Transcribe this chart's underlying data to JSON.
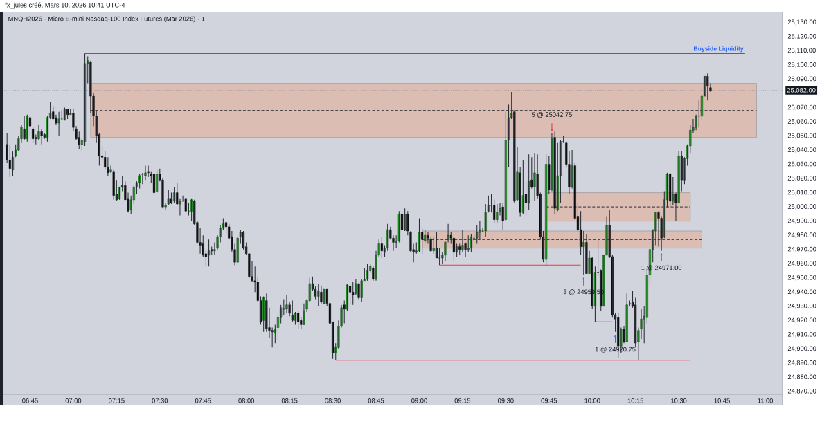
{
  "chart_data": {
    "type": "candlestick",
    "title": "MNQH2026 · Micro E-mini Nasdaq-100 Index Futures (Mar 2026) · 1",
    "subtitle": "fx_jules créé, Mars 10, 2026 10:41 UTC-4",
    "xlim": [
      "2026-03-10T06:36",
      "2026-03-10T11:06"
    ],
    "xticks": [
      {
        "value": "2026-03-10T06:45",
        "label": "06:45"
      },
      {
        "value": "2026-03-10T07:00",
        "label": "07:00"
      },
      {
        "value": "2026-03-10T07:15",
        "label": "07:15"
      },
      {
        "value": "2026-03-10T07:30",
        "label": "07:30"
      },
      {
        "value": "2026-03-10T07:45",
        "label": "07:45"
      },
      {
        "value": "2026-03-10T08:00",
        "label": "08:00"
      },
      {
        "value": "2026-03-10T08:15",
        "label": "08:15"
      },
      {
        "value": "2026-03-10T08:30",
        "label": "08:30"
      },
      {
        "value": "2026-03-10T08:45",
        "label": "08:45"
      },
      {
        "value": "2026-03-10T09:00",
        "label": "09:00"
      },
      {
        "value": "2026-03-10T09:15",
        "label": "09:15"
      },
      {
        "value": "2026-03-10T09:30",
        "label": "09:30"
      },
      {
        "value": "2026-03-10T09:45",
        "label": "09:45"
      },
      {
        "value": "2026-03-10T10:00",
        "label": "10:00"
      },
      {
        "value": "2026-03-10T10:15",
        "label": "10:15"
      },
      {
        "value": "2026-03-10T10:30",
        "label": "10:30"
      },
      {
        "value": "2026-03-10T10:45",
        "label": "10:45"
      },
      {
        "value": "2026-03-10T11:00",
        "label": "11:00"
      }
    ],
    "ylim": [
      24868,
      25137
    ],
    "yticks": [
      {
        "value": 24870,
        "label": "24,870.00"
      },
      {
        "value": 24880,
        "label": "24,880.00"
      },
      {
        "value": 24890,
        "label": "24,890.00"
      },
      {
        "value": 24900,
        "label": "24,900.00"
      },
      {
        "value": 24910,
        "label": "24,910.00"
      },
      {
        "value": 24920,
        "label": "24,920.00"
      },
      {
        "value": 24930,
        "label": "24,930.00"
      },
      {
        "value": 24940,
        "label": "24,940.00"
      },
      {
        "value": 24950,
        "label": "24,950.00"
      },
      {
        "value": 24960,
        "label": "24,960.00"
      },
      {
        "value": 24970,
        "label": "24,970.00"
      },
      {
        "value": 24980,
        "label": "24,980.00"
      },
      {
        "value": 24990,
        "label": "24,990.00"
      },
      {
        "value": 25000,
        "label": "25,000.00"
      },
      {
        "value": 25010,
        "label": "25,010.00"
      },
      {
        "value": 25020,
        "label": "25,020.00"
      },
      {
        "value": 25030,
        "label": "25,030.00"
      },
      {
        "value": 25040,
        "label": "25,040.00"
      },
      {
        "value": 25050,
        "label": "25,050.00"
      },
      {
        "value": 25060,
        "label": "25,060.00"
      },
      {
        "value": 25070,
        "label": "25,070.00"
      },
      {
        "value": 25090,
        "label": "25,090.00"
      },
      {
        "value": 25100,
        "label": "25,100.00"
      },
      {
        "value": 25110,
        "label": "25,110.00"
      },
      {
        "value": 25120,
        "label": "25,120.00"
      },
      {
        "value": 25130,
        "label": "25,130.00"
      }
    ],
    "x": [
      "2026-03-10T06:37",
      "2026-03-10T06:38",
      "2026-03-10T06:39",
      "2026-03-10T06:40",
      "2026-03-10T06:41",
      "2026-03-10T06:42",
      "2026-03-10T06:43",
      "2026-03-10T06:44",
      "2026-03-10T06:45",
      "2026-03-10T06:46",
      "2026-03-10T06:47",
      "2026-03-10T06:48",
      "2026-03-10T06:49",
      "2026-03-10T06:50",
      "2026-03-10T06:51",
      "2026-03-10T06:52",
      "2026-03-10T06:53",
      "2026-03-10T06:54",
      "2026-03-10T06:55",
      "2026-03-10T06:56",
      "2026-03-10T06:57",
      "2026-03-10T06:58",
      "2026-03-10T06:59",
      "2026-03-10T07:00",
      "2026-03-10T07:01",
      "2026-03-10T07:02",
      "2026-03-10T07:03",
      "2026-03-10T07:04",
      "2026-03-10T07:05",
      "2026-03-10T07:06",
      "2026-03-10T07:07",
      "2026-03-10T07:08",
      "2026-03-10T07:09",
      "2026-03-10T07:10",
      "2026-03-10T07:11",
      "2026-03-10T07:12",
      "2026-03-10T07:13",
      "2026-03-10T07:14",
      "2026-03-10T07:15",
      "2026-03-10T07:16",
      "2026-03-10T07:17",
      "2026-03-10T07:18",
      "2026-03-10T07:19",
      "2026-03-10T07:20",
      "2026-03-10T07:21",
      "2026-03-10T07:22",
      "2026-03-10T07:23",
      "2026-03-10T07:24",
      "2026-03-10T07:25",
      "2026-03-10T07:26",
      "2026-03-10T07:27",
      "2026-03-10T07:28",
      "2026-03-10T07:29",
      "2026-03-10T07:30",
      "2026-03-10T07:31",
      "2026-03-10T07:32",
      "2026-03-10T07:33",
      "2026-03-10T07:34",
      "2026-03-10T07:35",
      "2026-03-10T07:36",
      "2026-03-10T07:37",
      "2026-03-10T07:38",
      "2026-03-10T07:39",
      "2026-03-10T07:40",
      "2026-03-10T07:41",
      "2026-03-10T07:42",
      "2026-03-10T07:43",
      "2026-03-10T07:44",
      "2026-03-10T07:45",
      "2026-03-10T07:46",
      "2026-03-10T07:47",
      "2026-03-10T07:48",
      "2026-03-10T07:49",
      "2026-03-10T07:50",
      "2026-03-10T07:51",
      "2026-03-10T07:52",
      "2026-03-10T07:53",
      "2026-03-10T07:54",
      "2026-03-10T07:55",
      "2026-03-10T07:56",
      "2026-03-10T07:57",
      "2026-03-10T07:58",
      "2026-03-10T07:59",
      "2026-03-10T08:00",
      "2026-03-10T08:01",
      "2026-03-10T08:02",
      "2026-03-10T08:03",
      "2026-03-10T08:04",
      "2026-03-10T08:05",
      "2026-03-10T08:06",
      "2026-03-10T08:07",
      "2026-03-10T08:08",
      "2026-03-10T08:09",
      "2026-03-10T08:10",
      "2026-03-10T08:11",
      "2026-03-10T08:12",
      "2026-03-10T08:13",
      "2026-03-10T08:14",
      "2026-03-10T08:15",
      "2026-03-10T08:16",
      "2026-03-10T08:17",
      "2026-03-10T08:18",
      "2026-03-10T08:19",
      "2026-03-10T08:20",
      "2026-03-10T08:21",
      "2026-03-10T08:22",
      "2026-03-10T08:23",
      "2026-03-10T08:24",
      "2026-03-10T08:25",
      "2026-03-10T08:26",
      "2026-03-10T08:27",
      "2026-03-10T08:28",
      "2026-03-10T08:29",
      "2026-03-10T08:30",
      "2026-03-10T08:31",
      "2026-03-10T08:32",
      "2026-03-10T08:33",
      "2026-03-10T08:34",
      "2026-03-10T08:35",
      "2026-03-10T08:36",
      "2026-03-10T08:37",
      "2026-03-10T08:38",
      "2026-03-10T08:39",
      "2026-03-10T08:40",
      "2026-03-10T08:41",
      "2026-03-10T08:42",
      "2026-03-10T08:43",
      "2026-03-10T08:44",
      "2026-03-10T08:45",
      "2026-03-10T08:46",
      "2026-03-10T08:47",
      "2026-03-10T08:48",
      "2026-03-10T08:49",
      "2026-03-10T08:50",
      "2026-03-10T08:51",
      "2026-03-10T08:52",
      "2026-03-10T08:53",
      "2026-03-10T08:54",
      "2026-03-10T08:55",
      "2026-03-10T08:56",
      "2026-03-10T08:57",
      "2026-03-10T08:58",
      "2026-03-10T08:59",
      "2026-03-10T09:00",
      "2026-03-10T09:01",
      "2026-03-10T09:02",
      "2026-03-10T09:03",
      "2026-03-10T09:04",
      "2026-03-10T09:05",
      "2026-03-10T09:06",
      "2026-03-10T09:07",
      "2026-03-10T09:08",
      "2026-03-10T09:09",
      "2026-03-10T09:10",
      "2026-03-10T09:11",
      "2026-03-10T09:12",
      "2026-03-10T09:13",
      "2026-03-10T09:14",
      "2026-03-10T09:15",
      "2026-03-10T09:16",
      "2026-03-10T09:17",
      "2026-03-10T09:18",
      "2026-03-10T09:19",
      "2026-03-10T09:20",
      "2026-03-10T09:21",
      "2026-03-10T09:22",
      "2026-03-10T09:23",
      "2026-03-10T09:24",
      "2026-03-10T09:25",
      "2026-03-10T09:26",
      "2026-03-10T09:27",
      "2026-03-10T09:28",
      "2026-03-10T09:29",
      "2026-03-10T09:30",
      "2026-03-10T09:31",
      "2026-03-10T09:32",
      "2026-03-10T09:33",
      "2026-03-10T09:34",
      "2026-03-10T09:35",
      "2026-03-10T09:36",
      "2026-03-10T09:37",
      "2026-03-10T09:38",
      "2026-03-10T09:39",
      "2026-03-10T09:40",
      "2026-03-10T09:41",
      "2026-03-10T09:42",
      "2026-03-10T09:43",
      "2026-03-10T09:44",
      "2026-03-10T09:45",
      "2026-03-10T09:46",
      "2026-03-10T09:47",
      "2026-03-10T09:48",
      "2026-03-10T09:49",
      "2026-03-10T09:50",
      "2026-03-10T09:51",
      "2026-03-10T09:52",
      "2026-03-10T09:53",
      "2026-03-10T09:54",
      "2026-03-10T09:55",
      "2026-03-10T09:56",
      "2026-03-10T09:57",
      "2026-03-10T09:58",
      "2026-03-10T09:59",
      "2026-03-10T10:00",
      "2026-03-10T10:01",
      "2026-03-10T10:02",
      "2026-03-10T10:03",
      "2026-03-10T10:04",
      "2026-03-10T10:05",
      "2026-03-10T10:06",
      "2026-03-10T10:07",
      "2026-03-10T10:08",
      "2026-03-10T10:09",
      "2026-03-10T10:10",
      "2026-03-10T10:11",
      "2026-03-10T10:12",
      "2026-03-10T10:13",
      "2026-03-10T10:14",
      "2026-03-10T10:15",
      "2026-03-10T10:16",
      "2026-03-10T10:17",
      "2026-03-10T10:18",
      "2026-03-10T10:19",
      "2026-03-10T10:20",
      "2026-03-10T10:21",
      "2026-03-10T10:22",
      "2026-03-10T10:23",
      "2026-03-10T10:24",
      "2026-03-10T10:25",
      "2026-03-10T10:26",
      "2026-03-10T10:27",
      "2026-03-10T10:28",
      "2026-03-10T10:29",
      "2026-03-10T10:30",
      "2026-03-10T10:31",
      "2026-03-10T10:32",
      "2026-03-10T10:33",
      "2026-03-10T10:34",
      "2026-03-10T10:35",
      "2026-03-10T10:36",
      "2026-03-10T10:37",
      "2026-03-10T10:38",
      "2026-03-10T10:39",
      "2026-03-10T10:40",
      "2026-03-10T10:41"
    ],
    "ohlc": [
      [
        25044,
        25052,
        25031,
        25033
      ],
      [
        25033,
        25044,
        25021,
        25027
      ],
      [
        25026,
        25039,
        25022,
        25035
      ],
      [
        25036,
        25044,
        25035,
        25040
      ],
      [
        25040,
        25050,
        25039,
        25048
      ],
      [
        25048,
        25058,
        25045,
        25056
      ],
      [
        25055,
        25064,
        25047,
        25048
      ],
      [
        25048,
        25065,
        25046,
        25064
      ],
      [
        25063,
        25065,
        25050,
        25057
      ],
      [
        25055,
        25056,
        25045,
        25048
      ],
      [
        25049,
        25051,
        25044,
        25048
      ],
      [
        25048,
        25058,
        25047,
        25053
      ],
      [
        25053,
        25055,
        25044,
        25050
      ],
      [
        25051,
        25052,
        25048,
        25049
      ],
      [
        25049,
        25064,
        25046,
        25063
      ],
      [
        25063,
        25074,
        25062,
        25066
      ],
      [
        25067,
        25071,
        25062,
        25062
      ],
      [
        25063,
        25065,
        25058,
        25059
      ],
      [
        25059,
        25067,
        25050,
        25062
      ],
      [
        25062,
        25068,
        25061,
        25062
      ],
      [
        25061,
        25070,
        25061,
        25069
      ],
      [
        25069,
        25069,
        25062,
        25065
      ],
      [
        25065,
        25069,
        25065,
        25066
      ],
      [
        25066,
        25069,
        25053,
        25056
      ],
      [
        25055,
        25057,
        25047,
        25048
      ],
      [
        25049,
        25053,
        25041,
        25044
      ],
      [
        25044,
        25048,
        25039,
        25047
      ],
      [
        25046,
        25108,
        25043,
        25101
      ],
      [
        25101,
        25106,
        25087,
        25103
      ],
      [
        25102,
        25103,
        25066,
        25078
      ],
      [
        25078,
        25080,
        25057,
        25064
      ],
      [
        25064,
        25068,
        25045,
        25050
      ],
      [
        25051,
        25052,
        25029,
        25036
      ],
      [
        25036,
        25043,
        25033,
        25035
      ],
      [
        25035,
        25039,
        25026,
        25028
      ],
      [
        25028,
        25035,
        25022,
        25024
      ],
      [
        25025,
        25029,
        25024,
        25026
      ],
      [
        25025,
        25026,
        25005,
        25008
      ],
      [
        25009,
        25019,
        25004,
        25005
      ],
      [
        25006,
        25014,
        25005,
        25014
      ],
      [
        25015,
        25022,
        25011,
        25014
      ],
      [
        25015,
        25018,
        25005,
        25005
      ],
      [
        25006,
        25010,
        24996,
        24997
      ],
      [
        24998,
        25008,
        24995,
        25005
      ],
      [
        25005,
        25015,
        25002,
        25014
      ],
      [
        25014,
        25018,
        25009,
        25017
      ],
      [
        25017,
        25023,
        25013,
        25022
      ],
      [
        25023,
        25024,
        25016,
        25023
      ],
      [
        25022,
        25029,
        25019,
        25024
      ],
      [
        25025,
        25029,
        25021,
        25024
      ],
      [
        25023,
        25025,
        25017,
        25022
      ],
      [
        25023,
        25024,
        25008,
        25010
      ],
      [
        25011,
        25026,
        25010,
        25023
      ],
      [
        25023,
        25027,
        25018,
        25019
      ],
      [
        25019,
        25020,
        24999,
        25000
      ],
      [
        25000,
        25003,
        24998,
        25001
      ],
      [
        25002,
        25012,
        25001,
        25006
      ],
      [
        25006,
        25010,
        25002,
        25003
      ],
      [
        25004,
        25014,
        25003,
        25010
      ],
      [
        25010,
        25017,
        25001,
        25002
      ],
      [
        25002,
        25006,
        24994,
        25004
      ],
      [
        25004,
        25008,
        25004,
        25004
      ],
      [
        25006,
        25006,
        24997,
        24997
      ],
      [
        24997,
        25003,
        24994,
        24997
      ],
      [
        24997,
        25006,
        24990,
        25005
      ],
      [
        25004,
        25005,
        24987,
        24988
      ],
      [
        24989,
        24990,
        24974,
        24975
      ],
      [
        24975,
        24985,
        24967,
        24973
      ],
      [
        24974,
        24980,
        24965,
        24966
      ],
      [
        24967,
        24970,
        24958,
        24965
      ],
      [
        24966,
        24977,
        24958,
        24969
      ],
      [
        24970,
        24972,
        24966,
        24969
      ],
      [
        24969,
        24975,
        24966,
        24970
      ],
      [
        24971,
        24980,
        24970,
        24979
      ],
      [
        24979,
        24987,
        24975,
        24985
      ],
      [
        24985,
        24992,
        24984,
        24988
      ],
      [
        24989,
        24990,
        24981,
        24986
      ],
      [
        24986,
        24988,
        24977,
        24978
      ],
      [
        24979,
        24983,
        24968,
        24970
      ],
      [
        24970,
        24974,
        24959,
        24961
      ],
      [
        24961,
        24979,
        24961,
        24978
      ],
      [
        24979,
        24984,
        24974,
        24982
      ],
      [
        24982,
        24983,
        24970,
        24971
      ],
      [
        24972,
        24975,
        24966,
        24967
      ],
      [
        24967,
        24967,
        24950,
        24951
      ],
      [
        24951,
        24962,
        24947,
        24948
      ],
      [
        24948,
        24958,
        24940,
        24947
      ],
      [
        24947,
        24951,
        24933,
        24934
      ],
      [
        24934,
        24937,
        24917,
        24919
      ],
      [
        24920,
        24937,
        24912,
        24936
      ],
      [
        24934,
        24939,
        24912,
        24914
      ],
      [
        24915,
        24929,
        24908,
        24913
      ],
      [
        24913,
        24915,
        24901,
        24912
      ],
      [
        24911,
        24917,
        24904,
        24914
      ],
      [
        24915,
        24925,
        24906,
        24922
      ],
      [
        24922,
        24931,
        24918,
        24929
      ],
      [
        24928,
        24935,
        24924,
        24928
      ],
      [
        24928,
        24938,
        24925,
        24931
      ],
      [
        24931,
        24933,
        24923,
        24925
      ],
      [
        24924,
        24934,
        24919,
        24920
      ],
      [
        24920,
        24926,
        24917,
        24925
      ],
      [
        24925,
        24927,
        24914,
        24919
      ],
      [
        24920,
        24922,
        24914,
        24917
      ],
      [
        24917,
        24932,
        24917,
        24927
      ],
      [
        24928,
        24935,
        24926,
        24934
      ],
      [
        24934,
        24950,
        24933,
        24946
      ],
      [
        24946,
        24951,
        24941,
        24942
      ],
      [
        24942,
        24944,
        24935,
        24937
      ],
      [
        24937,
        24946,
        24930,
        24941
      ],
      [
        24940,
        24944,
        24932,
        24933
      ],
      [
        24932,
        24942,
        24932,
        24942
      ],
      [
        24942,
        24942,
        24930,
        24932
      ],
      [
        24932,
        24933,
        24918,
        24918
      ],
      [
        24919,
        24919,
        24893,
        24897
      ],
      [
        24897,
        24904,
        24892,
        24901
      ],
      [
        24901,
        24920,
        24900,
        24916
      ],
      [
        24916,
        24931,
        24915,
        24929
      ],
      [
        24931,
        24934,
        24918,
        24928
      ],
      [
        24928,
        24946,
        24927,
        24945
      ],
      [
        24944,
        24945,
        24931,
        24940
      ],
      [
        24940,
        24947,
        24931,
        24938
      ],
      [
        24939,
        24949,
        24938,
        24946
      ],
      [
        24946,
        24946,
        24935,
        24936
      ],
      [
        24936,
        24949,
        24933,
        24948
      ],
      [
        24948,
        24957,
        24948,
        24949
      ],
      [
        24949,
        24960,
        24948,
        24955
      ],
      [
        24955,
        24960,
        24954,
        24958
      ],
      [
        24957,
        24958,
        24948,
        24949
      ],
      [
        24949,
        24969,
        24948,
        24966
      ],
      [
        24966,
        24977,
        24965,
        24974
      ],
      [
        24974,
        24979,
        24964,
        24969
      ],
      [
        24968,
        24973,
        24965,
        24971
      ],
      [
        24971,
        24988,
        24969,
        24984
      ],
      [
        24984,
        24986,
        24977,
        24978
      ],
      [
        24978,
        24980,
        24969,
        24975
      ],
      [
        24975,
        24980,
        24971,
        24976
      ],
      [
        24976,
        24997,
        24975,
        24995
      ],
      [
        24995,
        24995,
        24983,
        24984
      ],
      [
        24984,
        24999,
        24983,
        24995
      ],
      [
        24995,
        24997,
        24980,
        24983
      ],
      [
        24982,
        24983,
        24968,
        24969
      ],
      [
        24970,
        24974,
        24961,
        24968
      ],
      [
        24968,
        24975,
        24967,
        24969
      ],
      [
        24969,
        24992,
        24968,
        24982
      ],
      [
        24982,
        24985,
        24967,
        24977
      ],
      [
        24976,
        24984,
        24975,
        24980
      ],
      [
        24980,
        24982,
        24974,
        24978
      ],
      [
        24977,
        24979,
        24968,
        24969
      ],
      [
        24969,
        24979,
        24967,
        24971
      ],
      [
        24971,
        24982,
        24964,
        24964
      ],
      [
        24964,
        24971,
        24959,
        24964
      ],
      [
        24964,
        24968,
        24960,
        24966
      ],
      [
        24966,
        24976,
        24962,
        24975
      ],
      [
        24977,
        24988,
        24975,
        24980
      ],
      [
        24980,
        24982,
        24974,
        24978
      ],
      [
        24978,
        24979,
        24962,
        24968
      ],
      [
        24968,
        24974,
        24965,
        24972
      ],
      [
        24972,
        24974,
        24966,
        24970
      ],
      [
        24970,
        24984,
        24968,
        24973
      ],
      [
        24974,
        24975,
        24965,
        24970
      ],
      [
        24970,
        24980,
        24968,
        24971
      ],
      [
        24971,
        24981,
        24968,
        24979
      ],
      [
        24978,
        24981,
        24977,
        24978
      ],
      [
        24978,
        24987,
        24974,
        24982
      ],
      [
        24982,
        24990,
        24977,
        24984
      ],
      [
        24983,
        24985,
        24982,
        24983
      ],
      [
        24983,
        25002,
        24979,
        24996
      ],
      [
        24997,
        25008,
        24996,
        25001
      ],
      [
        25001,
        25009,
        24996,
        25001
      ],
      [
        25001,
        25005,
        24989,
        24991
      ],
      [
        24991,
        25002,
        24989,
        24996
      ],
      [
        24997,
        25003,
        24994,
        24999
      ],
      [
        25000,
        25003,
        24984,
        24990
      ],
      [
        24991,
        25067,
        24990,
        25047
      ],
      [
        25047,
        25072,
        25028,
        25063
      ],
      [
        25063,
        25081,
        25062,
        25066
      ],
      [
        25067,
        25068,
        25003,
        25004
      ],
      [
        25005,
        25042,
        25004,
        25025
      ],
      [
        25024,
        25028,
        24993,
        24996
      ],
      [
        24996,
        25033,
        24995,
        25008
      ],
      [
        25009,
        25018,
        24993,
        25003
      ],
      [
        25003,
        25037,
        24998,
        25018
      ],
      [
        25019,
        25035,
        25013,
        25014
      ],
      [
        25014,
        25038,
        25004,
        25024
      ],
      [
        25023,
        25037,
        25006,
        25008
      ],
      [
        25009,
        25010,
        24977,
        24979
      ],
      [
        24979,
        24983,
        24961,
        24963
      ],
      [
        24963,
        25037,
        24959,
        25030
      ],
      [
        25030,
        25036,
        25009,
        25012
      ],
      [
        25012,
        25052,
        25011,
        25048
      ],
      [
        25049,
        25053,
        24995,
        24999
      ],
      [
        24998,
        25045,
        24997,
        25022
      ],
      [
        25022,
        25047,
        25003,
        25046
      ],
      [
        25046,
        25050,
        25045,
        25046
      ],
      [
        25045,
        25046,
        25028,
        25030
      ],
      [
        25030,
        25039,
        25009,
        25014
      ],
      [
        25014,
        25040,
        25013,
        25029
      ],
      [
        25029,
        25031,
        24991,
        24992
      ],
      [
        24993,
        25003,
        24982,
        24984
      ],
      [
        24984,
        24997,
        24966,
        24972
      ],
      [
        24972,
        24983,
        24952,
        24975
      ],
      [
        24975,
        24981,
        24953,
        24953
      ],
      [
        24953,
        24969,
        24953,
        24964
      ],
      [
        24964,
        24965,
        24928,
        24930
      ],
      [
        24930,
        24958,
        24919,
        24954
      ],
      [
        24954,
        24977,
        24951,
        24954
      ],
      [
        24955,
        24956,
        24927,
        24930
      ],
      [
        24930,
        24966,
        24930,
        24966
      ],
      [
        24966,
        24993,
        24966,
        24987
      ],
      [
        24987,
        24998,
        24964,
        24965
      ],
      [
        24965,
        24966,
        24922,
        24924
      ],
      [
        24924,
        24925,
        24912,
        24921
      ],
      [
        24922,
        24925,
        24894,
        24902
      ],
      [
        24902,
        24915,
        24897,
        24914
      ],
      [
        24914,
        24916,
        24904,
        24905
      ],
      [
        24905,
        24939,
        24905,
        24931
      ],
      [
        24932,
        24934,
        24930,
        24932
      ],
      [
        24933,
        24941,
        24929,
        24930
      ],
      [
        24931,
        24936,
        24901,
        24904
      ],
      [
        24905,
        24915,
        24892,
        24913
      ],
      [
        24914,
        24928,
        24907,
        24921
      ],
      [
        24921,
        24930,
        24904,
        24923
      ],
      [
        24922,
        24957,
        24918,
        24952
      ],
      [
        24952,
        24971,
        24944,
        24970
      ],
      [
        24970,
        24984,
        24961,
        24984
      ],
      [
        24983,
        24996,
        24973,
        24996
      ],
      [
        24996,
        24997,
        24972,
        24992
      ],
      [
        24992,
        24993,
        24969,
        24978
      ],
      [
        24979,
        25011,
        24978,
        25005
      ],
      [
        25005,
        25024,
        25000,
        25023
      ],
      [
        25023,
        25024,
        24999,
        25004
      ],
      [
        25004,
        25021,
        25001,
        25009
      ],
      [
        25009,
        25010,
        24990,
        25003
      ],
      [
        25003,
        25039,
        25003,
        25036
      ],
      [
        25036,
        25039,
        25011,
        25019
      ],
      [
        25019,
        25035,
        25016,
        25034
      ],
      [
        25034,
        25044,
        25029,
        25043
      ],
      [
        25043,
        25058,
        25038,
        25054
      ],
      [
        25054,
        25062,
        25052,
        25056
      ],
      [
        25056,
        25065,
        25054,
        25064
      ],
      [
        25064,
        25075,
        25056,
        25064
      ],
      [
        25064,
        25079,
        25061,
        25078
      ],
      [
        25078,
        25092,
        25078,
        25092
      ],
      [
        25092,
        25094,
        25075,
        25085
      ],
      [
        25084,
        25087,
        25081,
        25082
      ]
    ],
    "series": [
      {
        "type": "line",
        "line_style": "dashed",
        "color": "#4e4a4a",
        "x": [
          "2026-03-10T07:06",
          "2026-03-10T10:57"
        ],
        "values": [
          25068,
          25068
        ],
        "lower": [
          25049,
          25049
        ],
        "upper": [
          25087,
          25087
        ]
      },
      {
        "type": "line",
        "line_style": "dashed",
        "color": "#4e4a4a",
        "x": [
          "2026-03-10T09:44",
          "2026-03-10T10:34"
        ],
        "values": [
          25000,
          25000
        ],
        "lower": [
          24990,
          24990
        ],
        "upper": [
          25010,
          25010
        ]
      },
      {
        "type": "line",
        "line_style": "dashed",
        "color": "#4e4a4a",
        "x": [
          "2026-03-10T09:01",
          "2026-03-10T10:38"
        ],
        "values": [
          24977,
          24977
        ],
        "lower": [
          24971,
          24971
        ],
        "upper": [
          24983,
          24983
        ]
      },
      {
        "type": "line",
        "name": "Buyside Liquidity",
        "color": "#2962ff",
        "x": [
          "2026-03-10T07:04",
          "2026-03-10T10:53"
        ],
        "values": [
          25108,
          25108
        ]
      },
      {
        "type": "line",
        "color": "#f23645",
        "x": [
          "2026-03-10T08:31",
          "2026-03-10T10:34"
        ],
        "values": [
          24892,
          24892
        ]
      },
      {
        "type": "line",
        "color": "#f23645",
        "x": [
          "2026-03-10T09:07",
          "2026-03-10T09:56"
        ],
        "values": [
          24959,
          24959
        ]
      },
      {
        "type": "line",
        "color": "#f23645",
        "x": [
          "2026-03-10T10:01",
          "2026-03-10T10:07"
        ],
        "values": [
          24919,
          24919
        ]
      }
    ],
    "ref_lines": [
      {
        "axis": "y",
        "value": 25082,
        "label": "25,082.00",
        "color": "#787b86",
        "line_style": "dotted"
      }
    ],
    "annotations": [
      {
        "text": "5 @ 25042.75",
        "x": "2026-03-10T09:46",
        "y": 25053
      },
      {
        "text": "3 @ 24959.50",
        "x": "2026-03-10T09:57",
        "y": 24950.5
      },
      {
        "text": "1 @ 24920.75",
        "x": "2026-03-10T10:08",
        "y": 24910
      },
      {
        "text": "1 @ 24971.00",
        "x": "2026-03-10T10:24",
        "y": 24967.5
      }
    ]
  }
}
